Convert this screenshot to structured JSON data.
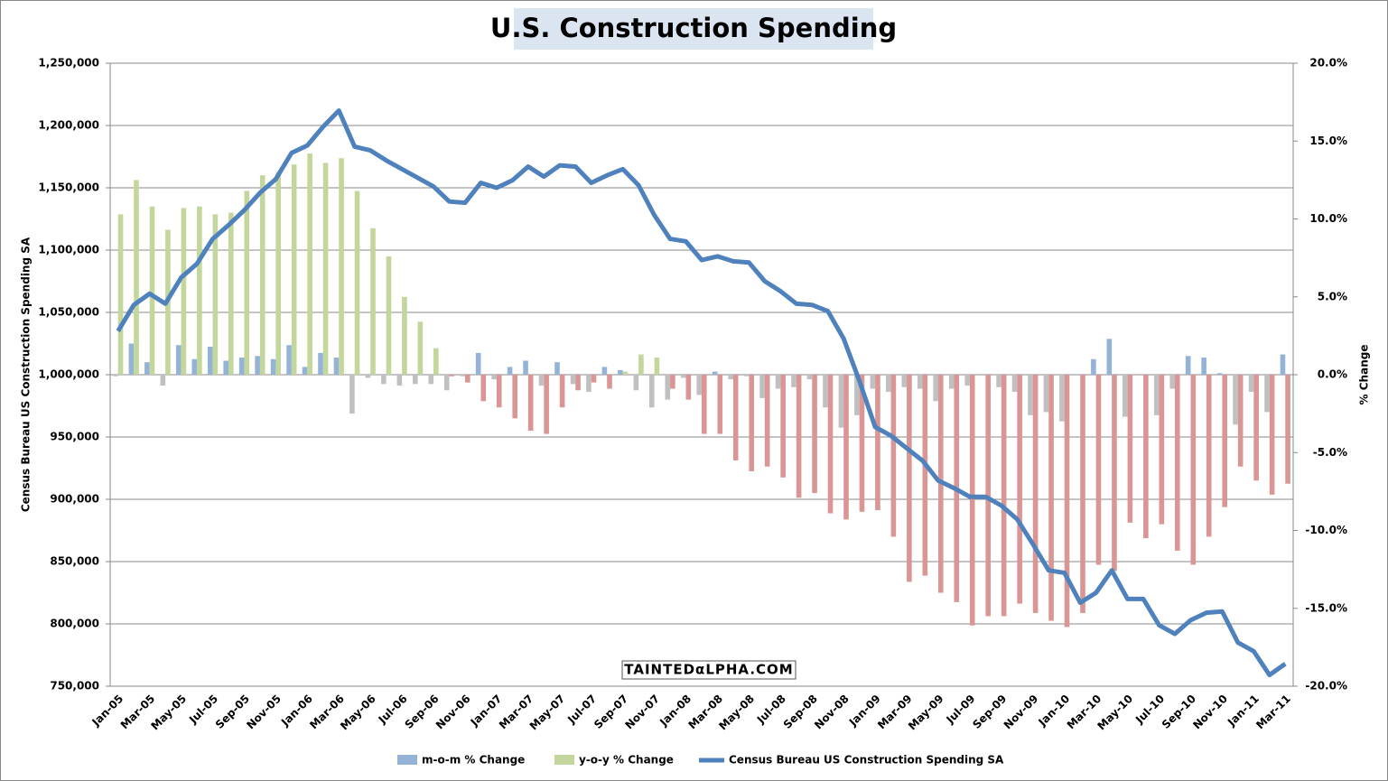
{
  "chart_data": {
    "type": "bar-line",
    "title": "U.S. Construction Spending",
    "watermark": "TAINTEDαLPHA.COM",
    "y_label": "Census Bureau US Construction Spending SA",
    "y2_label": "% Change",
    "categories": [
      "Jan-05",
      null,
      "Mar-05",
      null,
      "May-05",
      null,
      "Jul-05",
      null,
      "Sep-05",
      null,
      "Nov-05",
      null,
      "Jan-06",
      null,
      "Mar-06",
      null,
      "May-06",
      null,
      "Jul-06",
      null,
      "Sep-06",
      null,
      "Nov-06",
      null,
      "Jan-07",
      null,
      "Mar-07",
      null,
      "May-07",
      null,
      "Jul-07",
      null,
      "Sep-07",
      null,
      "Nov-07",
      null,
      "Jan-08",
      null,
      "Mar-08",
      null,
      "May-08",
      null,
      "Jul-08",
      null,
      "Sep-08",
      null,
      "Nov-08",
      null,
      "Jan-09",
      null,
      "Mar-09",
      null,
      "May-09",
      null,
      "Jul-09",
      null,
      "Sep-09",
      null,
      "Nov-09",
      null,
      "Jan-10",
      null,
      "Mar-10",
      null,
      "May-10",
      null,
      "Jul-10",
      null,
      "Sep-10",
      null,
      "Nov-10",
      null,
      "Jan-11",
      null,
      "Mar-11"
    ],
    "series": [
      {
        "name": "m-o-m % Change",
        "type": "bar",
        "axis": "y2",
        "color": "#95b3d7",
        "negative_color": "#c0c0c0",
        "values": [
          -0.1,
          2.0,
          0.8,
          -0.7,
          1.9,
          1.0,
          1.8,
          0.9,
          1.1,
          1.2,
          1.0,
          1.9,
          0.5,
          1.4,
          1.1,
          -2.5,
          -0.2,
          -0.6,
          -0.7,
          -0.6,
          -0.6,
          -1.0,
          -0.1,
          1.4,
          -0.3,
          0.5,
          0.9,
          -0.7,
          0.8,
          -0.6,
          -1.1,
          0.5,
          0.3,
          -1.0,
          -2.1,
          -1.6,
          -0.2,
          -1.3,
          0.2,
          -0.3,
          -0.1,
          -1.5,
          -0.9,
          -0.8,
          -0.3,
          -2.1,
          -3.4,
          -2.6,
          -0.9,
          -1.1,
          -0.8,
          -0.9,
          -1.7,
          -0.9,
          -0.7,
          0.0,
          -0.8,
          -1.1,
          -2.6,
          -2.4,
          -3.0,
          0.0,
          1.0,
          2.3,
          -2.7,
          0.0,
          -2.6,
          -0.9,
          1.2,
          1.1,
          0.1,
          -3.2,
          -1.1,
          -2.4,
          1.3
        ]
      },
      {
        "name": "y-o-y % Change",
        "type": "bar",
        "axis": "y2",
        "color": "#c3d69b",
        "negative_color": "#d99694",
        "values": [
          10.3,
          12.5,
          10.8,
          9.3,
          10.7,
          10.8,
          10.3,
          10.4,
          11.8,
          12.8,
          13.0,
          13.5,
          14.2,
          13.6,
          13.9,
          11.8,
          9.4,
          7.6,
          5.0,
          3.4,
          1.7,
          -0.1,
          -0.5,
          -1.7,
          -2.1,
          -2.8,
          -3.6,
          -3.8,
          -2.1,
          -1.0,
          -0.5,
          -0.9,
          0.2,
          1.3,
          1.1,
          -0.9,
          -1.6,
          -3.8,
          -3.8,
          -5.5,
          -6.2,
          -5.9,
          -6.6,
          -7.9,
          -7.6,
          -8.9,
          -9.3,
          -8.8,
          -8.7,
          -10.4,
          -13.3,
          -12.9,
          -14.0,
          -14.6,
          -16.1,
          -15.5,
          -15.5,
          -14.7,
          -15.3,
          -15.8,
          -16.2,
          -15.3,
          -12.2,
          -12.6,
          -9.5,
          -10.5,
          -9.6,
          -11.3,
          -12.2,
          -10.4,
          -8.5,
          -5.9,
          -6.8,
          -7.7,
          -7.0
        ]
      },
      {
        "name": "Census Bureau US Construction Spending SA",
        "type": "line",
        "axis": "y",
        "color": "#4f81bd",
        "values": [
          1035000,
          1056000,
          1065000,
          1057000,
          1078000,
          1089000,
          1109000,
          1120000,
          1132000,
          1146000,
          1157000,
          1178000,
          1184000,
          1199000,
          1212000,
          1183000,
          1180000,
          1172000,
          1165000,
          1158000,
          1151000,
          1139000,
          1138000,
          1154000,
          1150000,
          1156000,
          1167000,
          1159000,
          1168000,
          1167000,
          1154000,
          1160000,
          1165000,
          1152000,
          1128000,
          1109000,
          1107000,
          1092000,
          1095000,
          1091000,
          1090000,
          1075000,
          1067000,
          1057000,
          1056000,
          1051000,
          1029000,
          995000,
          958000,
          951000,
          941000,
          931000,
          915000,
          909000,
          902000,
          902000,
          895000,
          884000,
          864000,
          843000,
          841000,
          817000,
          825000,
          843000,
          820000,
          820000,
          799000,
          792000,
          803000,
          809000,
          810000,
          785000,
          778000,
          759000,
          768000
        ]
      }
    ],
    "ylim": [
      750000,
      1250000
    ],
    "yticks": [
      {
        "value": 750000,
        "label": "750,000"
      },
      {
        "value": 800000,
        "label": "800,000"
      },
      {
        "value": 850000,
        "label": "850,000"
      },
      {
        "value": 900000,
        "label": "900,000"
      },
      {
        "value": 950000,
        "label": "950,000"
      },
      {
        "value": 1000000,
        "label": "1,000,000"
      },
      {
        "value": 1050000,
        "label": "1,050,000"
      },
      {
        "value": 1100000,
        "label": "1,100,000"
      },
      {
        "value": 1150000,
        "label": "1,150,000"
      },
      {
        "value": 1200000,
        "label": "1,200,000"
      },
      {
        "value": 1250000,
        "label": "1,250,000"
      }
    ],
    "y2lim": [
      -20,
      20
    ],
    "y2ticks": [
      {
        "value": -20,
        "label": "-20.0%"
      },
      {
        "value": -15,
        "label": "-15.0%"
      },
      {
        "value": -10,
        "label": "-10.0%"
      },
      {
        "value": -5,
        "label": "-5.0%"
      },
      {
        "value": 0,
        "label": "0.0%"
      },
      {
        "value": 5,
        "label": "5.0%"
      },
      {
        "value": 10,
        "label": "10.0%"
      },
      {
        "value": 15,
        "label": "15.0%"
      },
      {
        "value": 20,
        "label": "20.0%"
      }
    ],
    "grid": true,
    "legend": "bottom"
  }
}
